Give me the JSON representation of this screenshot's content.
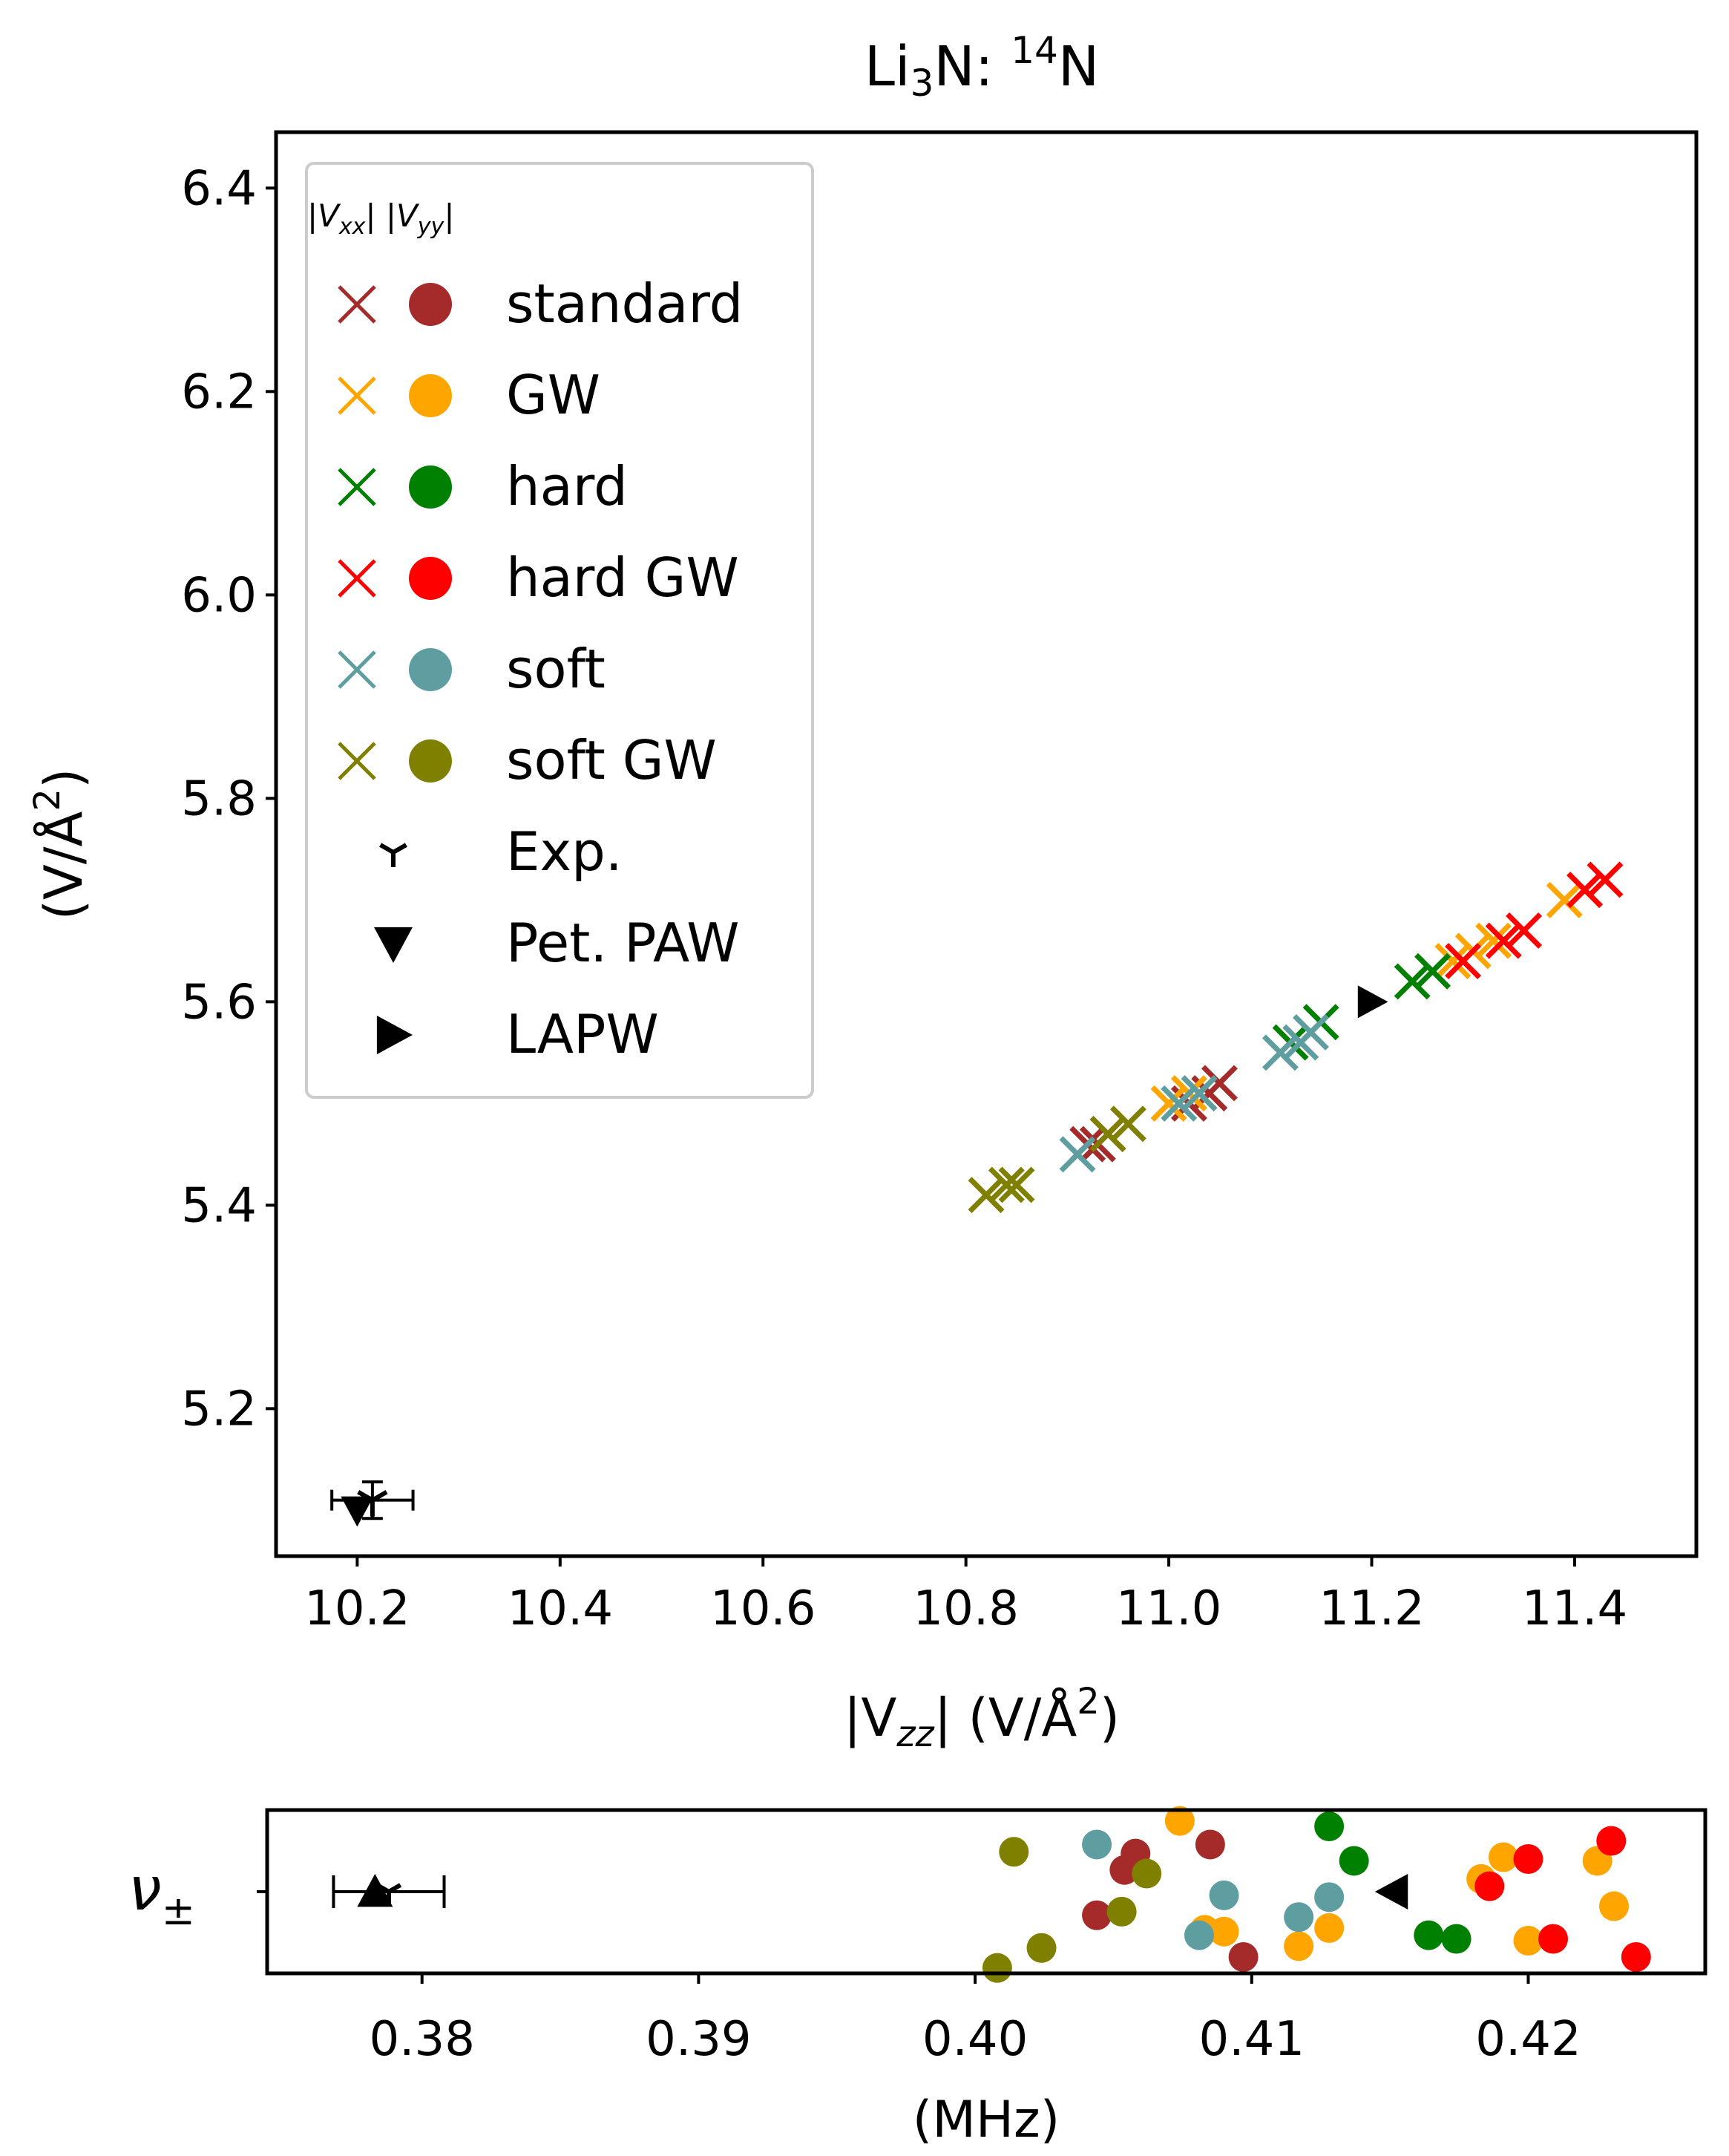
{
  "figure": {
    "title_main": "Li",
    "title_sub": "3",
    "title_mid": "N: ",
    "title_sup": "14",
    "title_end": "N"
  },
  "colors": {
    "standard": "#a52a2a",
    "GW": "#ffa500",
    "hard": "#008000",
    "hard GW": "#ff0000",
    "soft": "#5f9ea0",
    "soft GW": "#808000",
    "ref": "#000000"
  },
  "chart_data": [
    {
      "type": "scatter",
      "panel": "main",
      "xlabel_parts": {
        "a": "|V",
        "sub": "zz",
        "b": "| (V/Å",
        "sup": "2",
        "c": ")"
      },
      "ylabel_parts": {
        "a": "(V/Å",
        "sup": "2",
        "b": ")"
      },
      "xlim": [
        10.12,
        11.52
      ],
      "ylim": [
        5.055,
        6.455
      ],
      "xticks": [
        10.2,
        10.4,
        10.6,
        10.8,
        11.0,
        11.2,
        11.4
      ],
      "xtick_labels": [
        "10.2",
        "10.4",
        "10.6",
        "10.8",
        "11.0",
        "11.2",
        "11.4"
      ],
      "yticks": [
        5.2,
        5.4,
        5.6,
        5.8,
        6.0,
        6.2,
        6.4
      ],
      "ytick_labels": [
        "5.2",
        "5.4",
        "5.6",
        "5.8",
        "6.0",
        "6.2",
        "6.4"
      ],
      "legend": {
        "location": "upper-left",
        "header": "|Vxx| |Vyy|",
        "entries": [
          "standard",
          "GW",
          "hard",
          "hard GW",
          "soft",
          "soft GW",
          "Exp.",
          "Pet. PAW",
          "LAPW"
        ]
      },
      "series": [
        {
          "name": "standard",
          "marker": "x",
          "points": [
            [
              10.92,
              5.46
            ],
            [
              10.94,
              5.47
            ],
            [
              11.02,
              5.5
            ],
            [
              11.04,
              5.51
            ],
            [
              11.05,
              5.52
            ],
            [
              10.93,
              5.46
            ]
          ]
        },
        {
          "name": "GW",
          "marker": "x",
          "points": [
            [
              11.0,
              5.5
            ],
            [
              11.02,
              5.51
            ],
            [
              11.03,
              5.51
            ],
            [
              11.28,
              5.64
            ],
            [
              11.3,
              5.65
            ],
            [
              11.32,
              5.66
            ],
            [
              11.39,
              5.7
            ],
            [
              11.41,
              5.71
            ]
          ]
        },
        {
          "name": "hard",
          "marker": "x",
          "points": [
            [
              11.12,
              5.56
            ],
            [
              11.15,
              5.58
            ],
            [
              11.24,
              5.62
            ],
            [
              11.26,
              5.63
            ]
          ]
        },
        {
          "name": "hard GW",
          "marker": "x",
          "points": [
            [
              11.29,
              5.64
            ],
            [
              11.33,
              5.66
            ],
            [
              11.35,
              5.67
            ],
            [
              11.41,
              5.71
            ],
            [
              11.43,
              5.72
            ]
          ]
        },
        {
          "name": "soft",
          "marker": "x",
          "points": [
            [
              10.91,
              5.45
            ],
            [
              11.01,
              5.5
            ],
            [
              11.03,
              5.51
            ],
            [
              11.11,
              5.55
            ],
            [
              11.13,
              5.56
            ],
            [
              11.14,
              5.57
            ]
          ]
        },
        {
          "name": "soft GW",
          "marker": "x",
          "points": [
            [
              10.82,
              5.41
            ],
            [
              10.84,
              5.42
            ],
            [
              10.85,
              5.42
            ],
            [
              10.94,
              5.47
            ],
            [
              10.96,
              5.48
            ]
          ]
        }
      ],
      "reference_points": [
        {
          "name": "Exp.",
          "marker": "tri_down",
          "x": 10.215,
          "y": 5.11,
          "xerr": 0.04,
          "yerr": 0.018
        },
        {
          "name": "Pet. PAW",
          "marker": "triangle_down",
          "x": 10.2,
          "y": 5.1
        },
        {
          "name": "LAPW",
          "marker": "triangle_right",
          "x": 11.2,
          "y": 5.6
        }
      ]
    },
    {
      "type": "scatter",
      "panel": "bottom",
      "ylabel_parts": {
        "a": "ν",
        "sub": "±"
      },
      "xlabel": "(MHz)",
      "xlim": [
        0.3744,
        0.4264
      ],
      "ylim": [
        -0.45,
        0.45
      ],
      "xticks": [
        0.38,
        0.39,
        0.4,
        0.41,
        0.42
      ],
      "xtick_labels": [
        "0.38",
        "0.39",
        "0.40",
        "0.41",
        "0.42"
      ],
      "series": [
        {
          "name": "standard",
          "marker": "o",
          "points": [
            [
              0.4044,
              -0.13
            ],
            [
              0.4054,
              0.12
            ],
            [
              0.4058,
              0.21
            ],
            [
              0.4085,
              0.26
            ],
            [
              0.4097,
              -0.36
            ]
          ]
        },
        {
          "name": "GW",
          "marker": "o",
          "points": [
            [
              0.4074,
              0.39
            ],
            [
              0.4083,
              -0.21
            ],
            [
              0.409,
              -0.22
            ],
            [
              0.4117,
              -0.3
            ],
            [
              0.4128,
              -0.2
            ],
            [
              0.4183,
              0.07
            ],
            [
              0.4191,
              0.19
            ],
            [
              0.42,
              -0.27
            ],
            [
              0.4225,
              0.17
            ],
            [
              0.4231,
              -0.08
            ]
          ]
        },
        {
          "name": "hard",
          "marker": "o",
          "points": [
            [
              0.4128,
              0.36
            ],
            [
              0.4137,
              0.17
            ],
            [
              0.4164,
              -0.24
            ],
            [
              0.4174,
              -0.26
            ]
          ]
        },
        {
          "name": "hard GW",
          "marker": "o",
          "points": [
            [
              0.4186,
              0.03
            ],
            [
              0.42,
              0.18
            ],
            [
              0.4209,
              -0.26
            ],
            [
              0.423,
              0.28
            ],
            [
              0.4239,
              -0.36
            ]
          ]
        },
        {
          "name": "soft",
          "marker": "o",
          "points": [
            [
              0.4044,
              0.26
            ],
            [
              0.4081,
              -0.24
            ],
            [
              0.409,
              -0.02
            ],
            [
              0.4117,
              -0.14
            ],
            [
              0.4128,
              -0.03
            ]
          ]
        },
        {
          "name": "soft GW",
          "marker": "o",
          "points": [
            [
              0.4008,
              -0.42
            ],
            [
              0.4014,
              0.22
            ],
            [
              0.4024,
              -0.31
            ],
            [
              0.4053,
              -0.11
            ],
            [
              0.4062,
              0.1
            ]
          ]
        }
      ],
      "reference_points": [
        {
          "name": "Exp.",
          "marker": "tri_down",
          "x": 0.3788,
          "y": 0.0,
          "xerr": 0.002
        },
        {
          "name": "Pet. PAW",
          "marker": "triangle_up",
          "x": 0.3783,
          "y": 0.0
        },
        {
          "name": "LAPW",
          "marker": "triangle_left",
          "x": 0.4151,
          "y": 0.0
        }
      ]
    }
  ]
}
